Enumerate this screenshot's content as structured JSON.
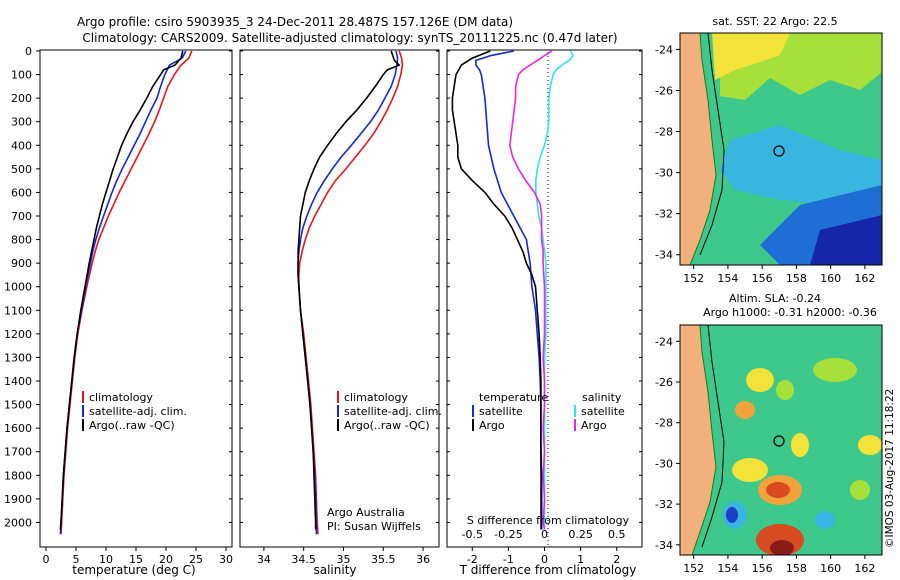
{
  "header": {
    "title_line1": "Argo profile: csiro 5903935_3 24-Dec-2011 28.487S 157.126E (DM data)",
    "title_line2": "Climatology: CARS2009. Satellite-adjusted climatology: synTS_20111225.nc (0.47d later)"
  },
  "credit": "©IMOS 03-Aug-2017 11:18:22",
  "colors": {
    "clim": "#e8141b",
    "sat": "#1428d8",
    "argo": "#000000",
    "sal_sat": "#2ee6e6",
    "sal_argo": "#e628e6",
    "land": "#f2b07c",
    "coast": "#1a7a1a"
  },
  "chart_data": [
    {
      "type": "line",
      "id": "temperature",
      "xlabel": "temperature (deg C)",
      "ylabel": "",
      "xlim": [
        -1,
        31
      ],
      "ylim": [
        2100,
        0
      ],
      "xticks": [
        "0",
        "5",
        "10",
        "15",
        "20",
        "25",
        "30"
      ],
      "xtick_values": [
        0,
        5,
        10,
        15,
        20,
        25,
        30
      ],
      "yticks": [
        "0",
        "100",
        "200",
        "300",
        "400",
        "500",
        "600",
        "700",
        "800",
        "900",
        "1000",
        "1100",
        "1200",
        "1300",
        "1400",
        "1500",
        "1600",
        "1700",
        "1800",
        "1900",
        "2000"
      ],
      "ytick_values": [
        0,
        100,
        200,
        300,
        400,
        500,
        600,
        700,
        800,
        900,
        1000,
        1100,
        1200,
        1300,
        1400,
        1500,
        1600,
        1700,
        1800,
        1900,
        2000
      ],
      "legend": [
        "climatology",
        "satellite-adj. clim.",
        "Argo(..raw -QC)"
      ],
      "series": [
        {
          "name": "climatology",
          "color": "#e8141b",
          "depth": [
            0,
            30,
            60,
            100,
            150,
            200,
            250,
            300,
            350,
            400,
            450,
            500,
            550,
            600,
            650,
            700,
            750,
            800,
            850,
            900,
            1000,
            1100,
            1200,
            1300,
            1400,
            1500,
            1600,
            1700,
            1800,
            1900,
            2000,
            2050
          ],
          "values": [
            24.3,
            23.8,
            22.5,
            21.4,
            20.3,
            19.6,
            18.9,
            18.1,
            17.2,
            16.2,
            15.2,
            14.2,
            13.2,
            12.2,
            11.3,
            10.4,
            9.6,
            8.8,
            8.2,
            7.7,
            6.8,
            6.0,
            5.3,
            4.8,
            4.4,
            4.0,
            3.6,
            3.3,
            3.0,
            2.8,
            2.6,
            2.5
          ]
        },
        {
          "name": "satellite-adj. clim.",
          "color": "#1428d8",
          "depth": [
            0,
            30,
            60,
            100,
            150,
            200,
            250,
            300,
            350,
            400,
            450,
            500,
            550,
            600,
            650,
            700,
            750,
            800,
            850,
            900,
            1000,
            1100,
            1200,
            1300,
            1400,
            1500,
            1600,
            1700,
            1800,
            1900,
            2000,
            2050
          ],
          "values": [
            23.3,
            22.7,
            20.6,
            19.8,
            19.1,
            18.5,
            17.5,
            16.6,
            15.7,
            14.7,
            13.7,
            12.7,
            11.8,
            11.0,
            10.3,
            9.6,
            8.9,
            8.3,
            7.8,
            7.4,
            6.6,
            5.9,
            5.2,
            4.7,
            4.3,
            3.9,
            3.5,
            3.2,
            2.9,
            2.7,
            2.5,
            2.4
          ]
        },
        {
          "name": "Argo(..raw -QC)",
          "color": "#000000",
          "depth": [
            0,
            30,
            60,
            80,
            100,
            150,
            200,
            250,
            300,
            350,
            400,
            450,
            500,
            550,
            600,
            650,
            700,
            750,
            800,
            850,
            900,
            1000,
            1100,
            1200,
            1300,
            1400,
            1500,
            1600,
            1700,
            1800,
            1900,
            2000,
            2030
          ],
          "values": [
            22.8,
            22.5,
            21.5,
            19.6,
            19.1,
            17.8,
            16.8,
            15.7,
            14.5,
            13.5,
            12.6,
            11.9,
            11.2,
            10.6,
            10.0,
            9.4,
            8.9,
            8.4,
            8.0,
            7.6,
            7.2,
            6.5,
            5.8,
            5.2,
            4.7,
            4.3,
            3.9,
            3.5,
            3.2,
            2.9,
            2.7,
            2.5,
            2.4
          ]
        }
      ]
    },
    {
      "type": "line",
      "id": "salinity",
      "xlabel": "salinity",
      "xlim": [
        33.7,
        36.2
      ],
      "ylim": [
        2100,
        0
      ],
      "xticks": [
        "34",
        "34.5",
        "35",
        "35.5",
        "36"
      ],
      "xtick_values": [
        34,
        34.5,
        35,
        35.5,
        36
      ],
      "legend": [
        "climatology",
        "satellite-adj. clim.",
        "Argo(..raw -QC)"
      ],
      "annotation_line1": "Argo Australia",
      "annotation_line2": "PI: Susan Wijffels",
      "series": [
        {
          "name": "climatology",
          "color": "#e8141b",
          "depth": [
            0,
            30,
            60,
            100,
            150,
            200,
            250,
            300,
            350,
            400,
            450,
            500,
            550,
            600,
            650,
            700,
            750,
            800,
            850,
            900,
            950,
            1000,
            1100,
            1200,
            1300,
            1400,
            1500,
            1600,
            1700,
            1800,
            1900,
            2000,
            2050
          ],
          "values": [
            35.7,
            35.73,
            35.74,
            35.72,
            35.68,
            35.62,
            35.55,
            35.47,
            35.38,
            35.27,
            35.15,
            35.03,
            34.9,
            34.8,
            34.72,
            34.64,
            34.57,
            34.52,
            34.48,
            34.45,
            34.44,
            34.44,
            34.46,
            34.5,
            34.53,
            34.56,
            34.59,
            34.61,
            34.63,
            34.65,
            34.66,
            34.67,
            34.68
          ]
        },
        {
          "name": "satellite-adj. clim.",
          "color": "#1428d8",
          "depth": [
            0,
            30,
            60,
            100,
            150,
            200,
            250,
            300,
            350,
            400,
            450,
            500,
            550,
            600,
            650,
            700,
            750,
            800,
            850,
            900,
            950,
            1000,
            1100,
            1200,
            1300,
            1400,
            1500,
            1600,
            1700,
            1800,
            1900,
            2000,
            2050
          ],
          "values": [
            35.66,
            35.68,
            35.67,
            35.65,
            35.6,
            35.52,
            35.44,
            35.34,
            35.22,
            35.1,
            34.97,
            34.86,
            34.76,
            34.67,
            34.6,
            34.54,
            34.49,
            34.46,
            34.44,
            34.43,
            34.43,
            34.44,
            34.46,
            34.49,
            34.52,
            34.55,
            34.58,
            34.6,
            34.62,
            34.64,
            34.65,
            34.66,
            34.66
          ]
        },
        {
          "name": "Argo(..raw -QC)",
          "color": "#000000",
          "depth": [
            0,
            20,
            40,
            60,
            80,
            100,
            150,
            200,
            250,
            300,
            350,
            400,
            450,
            500,
            550,
            600,
            650,
            700,
            750,
            800,
            850,
            900,
            950,
            1000,
            1100,
            1200,
            1300,
            1400,
            1500,
            1600,
            1700,
            1800,
            1900,
            2000,
            2030
          ],
          "values": [
            35.6,
            35.62,
            35.64,
            35.7,
            35.55,
            35.5,
            35.4,
            35.29,
            35.17,
            35.03,
            34.91,
            34.8,
            34.7,
            34.63,
            34.57,
            34.52,
            34.49,
            34.46,
            34.45,
            34.44,
            34.43,
            34.43,
            34.43,
            34.44,
            34.46,
            34.49,
            34.52,
            34.55,
            34.58,
            34.6,
            34.62,
            34.63,
            34.64,
            34.65,
            34.65
          ]
        }
      ]
    },
    {
      "type": "line",
      "id": "difference",
      "xlabel": "T difference from climatology",
      "xlabel_top": "S difference from climatology",
      "xlim_T": [
        -2.7,
        2.7
      ],
      "xlim_S": [
        -0.675,
        0.675
      ],
      "ylim": [
        2100,
        0
      ],
      "xticks_T": [
        "-2",
        "-1",
        "0",
        "1",
        "2"
      ],
      "xtick_values_T": [
        -2,
        -1,
        0,
        1,
        2
      ],
      "xticks_S": [
        "-0.5",
        "-0.25",
        "0",
        "0.25",
        "0.5"
      ],
      "xtick_values_S": [
        -0.5,
        -0.25,
        0,
        0.25,
        0.5
      ],
      "legend_temperature_title": "temperature",
      "legend_salinity_title": "salinity",
      "legend_temperature": [
        "satellite",
        "Argo"
      ],
      "legend_salinity": [
        "satellite",
        "Argo"
      ],
      "series": [
        {
          "name": "T satellite",
          "axis": "T",
          "color": "#1428d8",
          "depth": [
            0,
            20,
            40,
            60,
            80,
            100,
            150,
            200,
            300,
            400,
            500,
            600,
            700,
            800,
            900,
            1000,
            1100,
            1200,
            1300,
            1400,
            1500,
            1600,
            1700,
            1800,
            1900,
            2000,
            2030
          ],
          "values": [
            -0.85,
            -1.5,
            -1.9,
            -1.9,
            -1.8,
            -1.75,
            -1.7,
            -1.65,
            -1.6,
            -1.55,
            -1.4,
            -1.2,
            -0.85,
            -0.5,
            -0.4,
            -0.35,
            -0.25,
            -0.2,
            -0.15,
            -0.12,
            -0.1,
            -0.1,
            -0.1,
            -0.1,
            -0.1,
            -0.1,
            -0.1
          ]
        },
        {
          "name": "T Argo",
          "axis": "T",
          "color": "#000000",
          "depth": [
            0,
            30,
            60,
            100,
            150,
            200,
            250,
            300,
            350,
            400,
            450,
            500,
            550,
            600,
            650,
            700,
            750,
            800,
            850,
            900,
            950,
            1000,
            1100,
            1200,
            1300,
            1400,
            1500,
            1600,
            1700,
            1800,
            1900,
            2000,
            2030
          ],
          "values": [
            -1.5,
            -2.0,
            -2.3,
            -2.45,
            -2.5,
            -2.55,
            -2.55,
            -2.5,
            -2.45,
            -2.4,
            -2.4,
            -2.3,
            -2.0,
            -1.65,
            -1.4,
            -1.1,
            -0.9,
            -0.75,
            -0.6,
            -0.5,
            -0.35,
            -0.25,
            -0.2,
            -0.15,
            -0.12,
            -0.1,
            -0.1,
            -0.1,
            -0.1,
            -0.08,
            -0.08,
            -0.08,
            -0.08
          ]
        },
        {
          "name": "S satellite",
          "axis": "S",
          "color": "#2ee6e6",
          "depth": [
            0,
            20,
            40,
            60,
            80,
            100,
            150,
            200,
            250,
            300,
            350,
            400,
            450,
            500,
            550,
            600,
            650,
            700,
            750,
            800,
            850,
            900,
            1000,
            1100,
            1200,
            1300,
            1400,
            1500,
            1600,
            1700,
            1800,
            1900,
            2000,
            2030
          ],
          "values": [
            0.18,
            0.2,
            0.17,
            0.12,
            0.08,
            0.06,
            0.04,
            0.03,
            0.03,
            0.03,
            0.02,
            0.0,
            -0.03,
            -0.05,
            -0.06,
            -0.06,
            -0.05,
            -0.04,
            -0.02,
            -0.01,
            0.0,
            0.01,
            0.01,
            0.01,
            0.01,
            0.0,
            0.0,
            0.0,
            0.0,
            0.0,
            0.0,
            0.0,
            0.0,
            0.0
          ]
        },
        {
          "name": "S Argo",
          "axis": "S",
          "color": "#e628e6",
          "depth": [
            0,
            20,
            40,
            60,
            80,
            100,
            150,
            200,
            250,
            300,
            350,
            400,
            450,
            500,
            550,
            600,
            650,
            700,
            750,
            800,
            850,
            900,
            1000,
            1100,
            1200,
            1300,
            1400,
            1500,
            1600,
            1700,
            1800,
            1900,
            2000,
            2030
          ],
          "values": [
            0.05,
            0.0,
            -0.05,
            -0.1,
            -0.15,
            -0.18,
            -0.2,
            -0.2,
            -0.21,
            -0.22,
            -0.23,
            -0.24,
            -0.22,
            -0.18,
            -0.13,
            -0.07,
            -0.03,
            -0.02,
            -0.02,
            -0.02,
            -0.01,
            -0.01,
            0.0,
            0.0,
            0.0,
            -0.01,
            0.0,
            0.0,
            -0.01,
            0.0,
            -0.01,
            0.0,
            -0.01,
            0.0
          ]
        }
      ]
    },
    {
      "type": "heatmap",
      "id": "sst_map",
      "title": "sat. SST: 22 Argo: 22.5",
      "xticks": [
        "152",
        "154",
        "156",
        "158",
        "160",
        "162"
      ],
      "xtick_values": [
        152,
        154,
        156,
        158,
        160,
        162
      ],
      "yticks": [
        "-24",
        "-26",
        "-28",
        "-30",
        "-32",
        "-34"
      ],
      "ytick_values": [
        -24,
        -26,
        -28,
        -30,
        -32,
        -34
      ],
      "xlim": [
        151.2,
        163.0
      ],
      "ylim": [
        -23.2,
        -34.5
      ],
      "argo_position": [
        157.126,
        -28.487
      ]
    },
    {
      "type": "heatmap",
      "id": "sla_map",
      "title_line1": "Altim. SLA: -0.24",
      "title_line2": "Argo h1000: -0.31 h2000: -0.36",
      "xticks": [
        "152",
        "154",
        "156",
        "158",
        "160",
        "162"
      ],
      "xtick_values": [
        152,
        154,
        156,
        158,
        160,
        162
      ],
      "yticks": [
        "-24",
        "-26",
        "-28",
        "-30",
        "-32",
        "-34"
      ],
      "ytick_values": [
        -24,
        -26,
        -28,
        -30,
        -32,
        -34
      ],
      "xlim": [
        151.2,
        163.0
      ],
      "ylim": [
        -23.2,
        -34.5
      ],
      "argo_position": [
        157.126,
        -28.487
      ]
    }
  ]
}
